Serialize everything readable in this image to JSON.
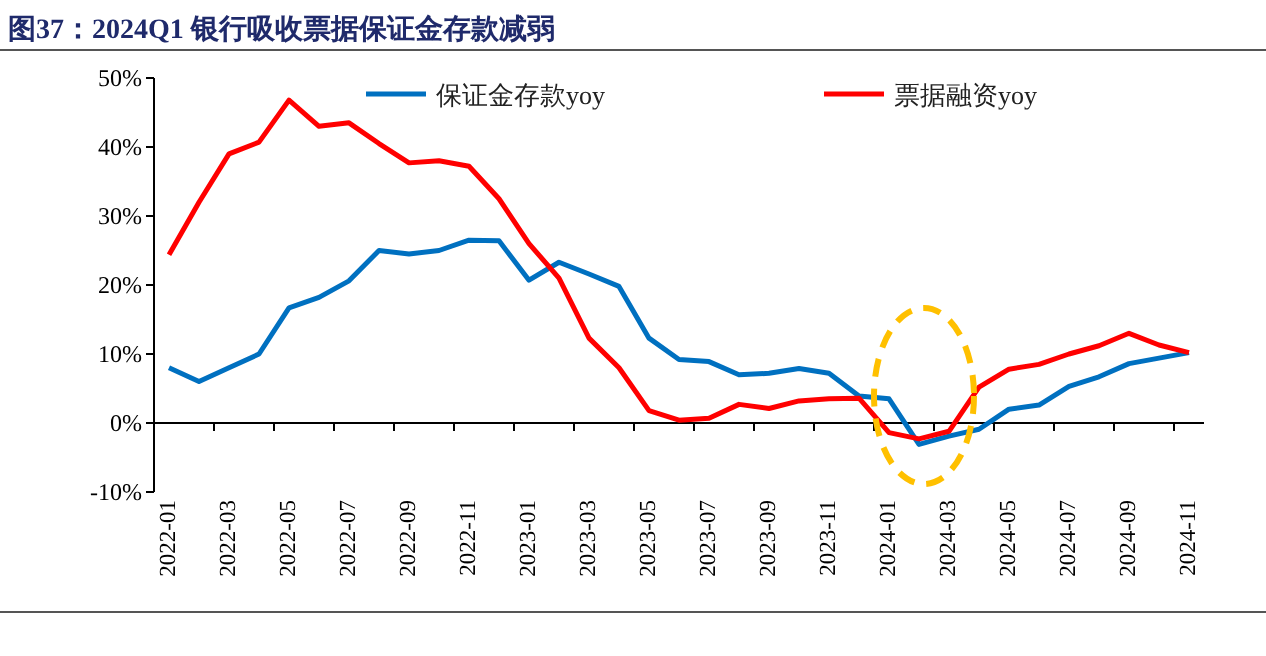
{
  "chart_data": {
    "type": "line",
    "title": "图37：2024Q1 银行吸收票据保证金存款减弱",
    "categories": [
      "2022-01",
      null,
      "2022-03",
      null,
      "2022-05",
      null,
      "2022-07",
      null,
      "2022-09",
      null,
      "2022-11",
      null,
      "2023-01",
      null,
      "2023-03",
      null,
      "2023-05",
      null,
      "2023-07",
      null,
      "2023-09",
      null,
      "2023-11",
      null,
      "2024-01",
      null,
      "2024-03",
      null,
      "2024-05",
      null,
      "2024-07",
      null,
      "2024-09",
      null,
      "2024-11"
    ],
    "series": [
      {
        "name": "保证金存款yoy",
        "color": "#0070c0",
        "values": [
          8,
          6,
          8,
          10,
          16.7,
          18.2,
          20.6,
          25,
          24.5,
          25,
          26.5,
          26.4,
          20.7,
          23.3,
          21.6,
          19.8,
          12.3,
          9.2,
          8.9,
          7,
          7.2,
          7.9,
          7.2,
          3.9,
          3.5,
          -3.1,
          -1.9,
          -0.9,
          2,
          2.6,
          5.3,
          6.7,
          8.6,
          9.4,
          10.2
        ]
      },
      {
        "name": "票据融资yoy",
        "color": "#ff0000",
        "values": [
          24.4,
          32,
          39,
          40.7,
          46.8,
          43,
          43.5,
          40.5,
          37.7,
          38,
          37.2,
          32.5,
          26,
          21,
          12.3,
          8,
          1.8,
          0.4,
          0.7,
          2.7,
          2.1,
          3.2,
          3.5,
          3.6,
          -1.4,
          -2.3,
          -1.2,
          5.2,
          7.8,
          8.5,
          10,
          11.2,
          13,
          11.3,
          10.2
        ]
      }
    ],
    "ylim": [
      -10,
      50
    ],
    "yticks": [
      {
        "value": -10,
        "label": "-10%"
      },
      {
        "value": 0,
        "label": "0%"
      },
      {
        "value": 10,
        "label": "10%"
      },
      {
        "value": 20,
        "label": "20%"
      },
      {
        "value": 30,
        "label": "30%"
      },
      {
        "value": 40,
        "label": "40%"
      },
      {
        "value": 50,
        "label": "50%"
      }
    ],
    "legend": "top",
    "marker": "none",
    "line_style": "solid"
  }
}
